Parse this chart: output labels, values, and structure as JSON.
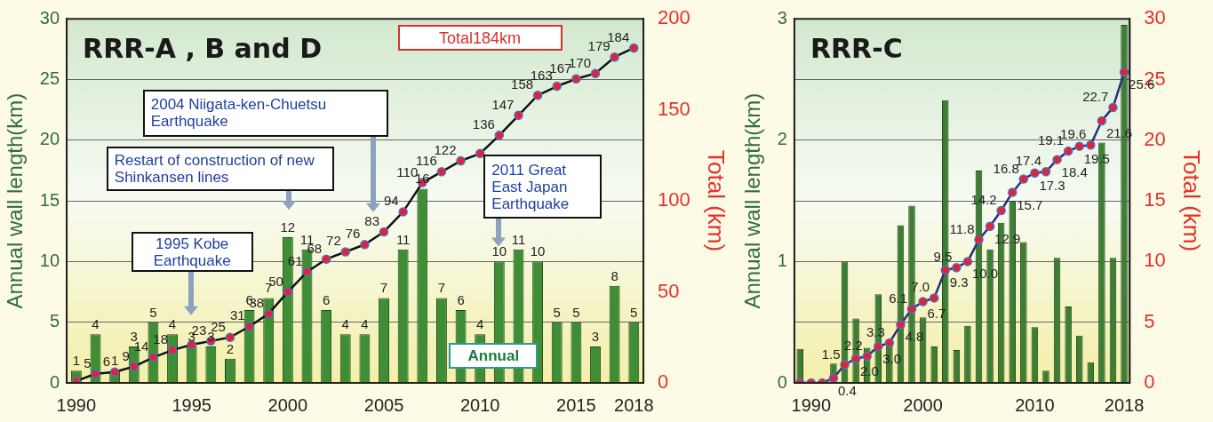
{
  "chart_data": [
    {
      "type": "bar",
      "title": "RRR-A , B and D",
      "ylabel": "Annual wall length(km)",
      "y2label": "Total (km)",
      "categories": [
        "1990",
        null,
        null,
        null,
        null,
        null,
        "1995",
        null,
        null,
        null,
        null,
        "2000",
        null,
        null,
        null,
        null,
        "2005",
        null,
        null,
        null,
        null,
        "2010",
        null,
        null,
        null,
        null,
        "2015",
        null,
        null,
        "2018"
      ],
      "series": [
        {
          "type": "bar",
          "color": "#3f8e36",
          "values": [
            1,
            4,
            1,
            3,
            5,
            4,
            3,
            3,
            2,
            6,
            7,
            12,
            11,
            6,
            4,
            4,
            7,
            11,
            16,
            7,
            6,
            4,
            10,
            11,
            10,
            5,
            5,
            3,
            8,
            5
          ],
          "value_labels": [
            "1",
            "4",
            "1",
            "3",
            "5",
            "4",
            "3",
            "3",
            "2",
            "6",
            "7",
            "12",
            "11",
            "6",
            "4",
            "4",
            "7",
            "11",
            "16",
            "7",
            "6",
            "4",
            "10",
            "11",
            "10",
            "5",
            "5",
            "3",
            "8",
            "5"
          ]
        },
        {
          "type": "line",
          "axis": "y2",
          "color": "#111111",
          "values": [
            1,
            5,
            6,
            9,
            14,
            18,
            21,
            23,
            25,
            31,
            38,
            50,
            61,
            68,
            72,
            76,
            83,
            94,
            110,
            116,
            122,
            126,
            136,
            147,
            158,
            163,
            167,
            170,
            179,
            184
          ],
          "value_labels": [
            null,
            "5",
            "6",
            "9",
            "14",
            "18",
            null,
            "23",
            "25",
            "31",
            "38",
            "50",
            "61",
            "68",
            "72",
            "76",
            "83",
            "94",
            "110",
            "116",
            "122",
            null,
            "136",
            "147",
            "158",
            "163",
            "167",
            "170",
            "179",
            "184"
          ]
        }
      ],
      "ylim": [
        0,
        30
      ],
      "yticks": [
        0,
        5,
        10,
        15,
        20,
        25,
        30
      ],
      "y2lim": [
        0,
        200
      ],
      "y2ticks": [
        0,
        50,
        100,
        150,
        200
      ],
      "grid": "y",
      "marker": "circle",
      "line_style": "solid",
      "annotations": [
        "Total184km",
        "2004 Niigata-ken-Chuetsu Earthquake",
        "Restart of construction of new Shinkansen lines",
        "1995 Kobe Earthquake",
        "2011 Great East Japan Earthquake",
        "Annual"
      ]
    },
    {
      "type": "bar",
      "title": "RRR-C",
      "ylabel": "Annual wall length(km)",
      "y2label": "Total (km)",
      "categories": [
        null,
        "1990",
        null,
        null,
        null,
        null,
        null,
        null,
        null,
        null,
        null,
        "2000",
        null,
        null,
        null,
        null,
        null,
        null,
        null,
        null,
        null,
        "2010",
        null,
        null,
        null,
        null,
        null,
        null,
        null,
        "2018"
      ],
      "series": [
        {
          "type": "bar",
          "color": "#3d7d34",
          "values": [
            0.28,
            null,
            null,
            0.16,
            1.0,
            0.53,
            0.29,
            0.73,
            0.3,
            1.3,
            1.46,
            0.54,
            0.3,
            2.33,
            0.27,
            0.47,
            1.75,
            1.1,
            1.32,
            1.5,
            1.16,
            0.46,
            0.1,
            1.03,
            0.63,
            0.39,
            0.17,
            1.98,
            1.03,
            2.95
          ]
        },
        {
          "type": "line",
          "axis": "y2",
          "color": "#2b2d7a",
          "values": [
            0,
            0,
            0,
            0.4,
            1.5,
            2.0,
            2.2,
            3.0,
            3.3,
            4.8,
            6.1,
            6.7,
            7.0,
            9.3,
            9.5,
            10.0,
            11.8,
            12.9,
            14.2,
            15.7,
            16.8,
            17.3,
            17.4,
            18.4,
            19.1,
            19.5,
            19.6,
            21.6,
            22.7,
            25.6
          ],
          "value_labels": [
            null,
            null,
            null,
            "0.4",
            "1.5",
            "2.0",
            "2.2",
            "3.0",
            "3.3",
            "4.8",
            "6.1",
            "6.7",
            "7.0",
            "9.3",
            "9.5",
            "10.0",
            "11.8",
            "12.9",
            "14.2",
            "15.7",
            "16.8",
            "17.3",
            "17.4",
            "18.4",
            "19.1",
            "19.5",
            "19.6",
            "21.6",
            "22.7",
            "25.6"
          ]
        }
      ],
      "ylim": [
        0,
        3
      ],
      "yticks": [
        0,
        {
          "value": 0.5,
          "label": null
        },
        1,
        {
          "value": 1.5,
          "label": null
        },
        2,
        {
          "value": 2.5,
          "label": null
        },
        3
      ],
      "y2lim": [
        0,
        30
      ],
      "y2ticks": [
        0,
        5,
        10,
        15,
        20,
        25,
        30
      ],
      "grid": "y",
      "marker": "circle",
      "line_style": "solid"
    }
  ]
}
